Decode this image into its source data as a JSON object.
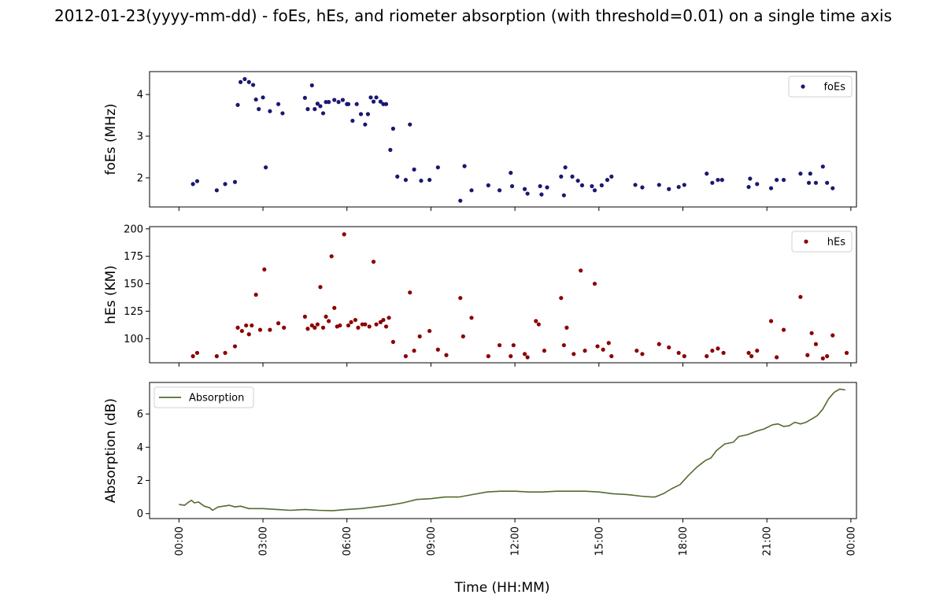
{
  "figure": {
    "title": "2012-01-23(yyyy-mm-dd) - foEs, hEs, and riometer absorption (with threshold=0.01) on a single time axis",
    "xlabel": "Time (HH:MM)"
  },
  "chart_data": [
    {
      "type": "scatter",
      "ylabel": "foEs (MHz)",
      "xlim": [
        -1.05,
        24.2
      ],
      "ylim": [
        1.3,
        4.55
      ],
      "yticks": [
        2,
        3,
        4
      ],
      "color": "#191970",
      "legend": {
        "placement": "top-right"
      },
      "series": [
        {
          "name": "foEs",
          "x": [
            0.5,
            0.65,
            1.35,
            1.65,
            2.0,
            2.1,
            2.2,
            2.35,
            2.5,
            2.65,
            2.75,
            2.85,
            3.0,
            3.1,
            3.25,
            3.55,
            3.7,
            4.5,
            4.6,
            4.75,
            4.85,
            4.95,
            5.05,
            5.15,
            5.25,
            5.35,
            5.55,
            5.7,
            5.85,
            6.0,
            6.05,
            6.2,
            6.35,
            6.5,
            6.65,
            6.75,
            6.85,
            6.95,
            7.05,
            7.2,
            7.3,
            7.4,
            7.55,
            7.65,
            7.8,
            8.1,
            8.25,
            8.4,
            8.65,
            8.95,
            9.25,
            10.05,
            10.2,
            10.45,
            11.05,
            11.45,
            11.85,
            11.9,
            12.35,
            12.45,
            12.9,
            12.95,
            13.15,
            13.65,
            13.75,
            13.8,
            14.05,
            14.25,
            14.4,
            14.75,
            14.85,
            15.1,
            15.3,
            15.45,
            16.3,
            16.55,
            17.15,
            17.5,
            17.85,
            18.05,
            18.85,
            19.05,
            19.25,
            19.4,
            20.35,
            20.4,
            20.65,
            21.15,
            21.35,
            21.6,
            22.2,
            22.5,
            22.55,
            22.75,
            23.0,
            23.15,
            23.35
          ],
          "y": [
            1.85,
            1.92,
            1.7,
            1.85,
            1.9,
            3.75,
            4.3,
            4.37,
            4.3,
            4.23,
            3.88,
            3.65,
            3.93,
            2.25,
            3.6,
            3.77,
            3.55,
            3.92,
            3.65,
            4.22,
            3.65,
            3.78,
            3.72,
            3.55,
            3.82,
            3.82,
            3.87,
            3.82,
            3.87,
            3.77,
            3.77,
            3.37,
            3.77,
            3.53,
            3.28,
            3.53,
            3.93,
            3.83,
            3.93,
            3.83,
            3.77,
            3.77,
            2.67,
            3.18,
            2.03,
            1.95,
            3.28,
            2.2,
            1.93,
            1.95,
            2.25,
            1.45,
            2.28,
            1.7,
            1.82,
            1.7,
            2.12,
            1.8,
            1.73,
            1.62,
            1.8,
            1.6,
            1.77,
            2.03,
            1.58,
            2.25,
            2.03,
            1.93,
            1.82,
            1.8,
            1.7,
            1.82,
            1.95,
            2.03,
            1.83,
            1.77,
            1.83,
            1.73,
            1.78,
            1.83,
            2.1,
            1.88,
            1.95,
            1.95,
            1.78,
            1.98,
            1.85,
            1.75,
            1.95,
            1.95,
            2.1,
            1.88,
            2.1,
            1.88,
            2.27,
            1.88,
            1.75
          ]
        }
      ]
    },
    {
      "type": "scatter",
      "ylabel": "hEs (KM)",
      "xlim": [
        -1.05,
        24.2
      ],
      "ylim": [
        78,
        202
      ],
      "yticks": [
        100,
        125,
        150,
        175,
        200
      ],
      "color": "#8b0000",
      "legend": {
        "placement": "top-right"
      },
      "series": [
        {
          "name": "hEs",
          "x": [
            0.5,
            0.65,
            1.35,
            1.65,
            2.0,
            2.1,
            2.25,
            2.4,
            2.5,
            2.6,
            2.75,
            2.9,
            3.05,
            3.25,
            3.55,
            3.75,
            4.5,
            4.6,
            4.75,
            4.85,
            4.95,
            5.05,
            5.15,
            5.25,
            5.35,
            5.45,
            5.55,
            5.65,
            5.75,
            5.9,
            6.05,
            6.15,
            6.3,
            6.4,
            6.55,
            6.65,
            6.8,
            6.95,
            7.05,
            7.2,
            7.3,
            7.4,
            7.5,
            7.65,
            8.1,
            8.25,
            8.4,
            8.6,
            8.95,
            9.25,
            9.55,
            10.05,
            10.15,
            10.45,
            11.05,
            11.45,
            11.85,
            11.95,
            12.35,
            12.45,
            12.75,
            12.85,
            13.05,
            13.65,
            13.75,
            13.85,
            14.1,
            14.35,
            14.5,
            14.85,
            14.95,
            15.15,
            15.35,
            15.45,
            16.35,
            16.55,
            17.15,
            17.5,
            17.85,
            18.05,
            18.85,
            19.05,
            19.25,
            19.45,
            20.35,
            20.45,
            20.65,
            21.15,
            21.35,
            21.6,
            22.2,
            22.45,
            22.6,
            22.75,
            23.0,
            23.15,
            23.35,
            23.85
          ],
          "y": [
            84,
            87,
            84,
            87,
            93,
            110,
            107,
            112,
            104,
            112,
            140,
            108,
            163,
            108,
            114,
            110,
            120,
            109,
            112,
            110,
            113,
            147,
            110,
            120,
            116,
            175,
            128,
            111,
            112,
            195,
            112,
            115,
            117,
            110,
            113,
            113,
            111,
            170,
            113,
            115,
            117,
            111,
            119,
            97,
            84,
            142,
            89,
            102,
            107,
            90,
            85,
            137,
            102,
            119,
            84,
            94,
            84,
            94,
            86,
            83,
            116,
            113,
            89,
            137,
            94,
            110,
            86,
            162,
            89,
            150,
            93,
            90,
            96,
            84,
            89,
            86,
            95,
            92,
            87,
            84,
            84,
            89,
            91,
            87,
            87,
            84,
            89,
            116,
            83,
            108,
            138,
            85,
            105,
            95,
            82,
            84,
            103,
            87
          ]
        }
      ]
    },
    {
      "type": "line",
      "ylabel": "Absorption (dB)",
      "xlim": [
        -1.05,
        24.2
      ],
      "ylim": [
        -0.3,
        7.9
      ],
      "yticks": [
        0,
        2,
        4,
        6
      ],
      "color": "#556b2f",
      "legend": {
        "placement": "top-left"
      },
      "series": [
        {
          "name": "Absorption",
          "x": [
            0.0,
            0.2,
            0.35,
            0.45,
            0.55,
            0.7,
            0.9,
            1.0,
            1.1,
            1.2,
            1.4,
            1.6,
            1.8,
            2.0,
            2.2,
            2.5,
            2.8,
            3.0,
            3.5,
            4.0,
            4.5,
            5.0,
            5.5,
            6.0,
            6.5,
            7.0,
            7.5,
            8.0,
            8.5,
            9.0,
            9.5,
            10.0,
            10.5,
            11.0,
            11.5,
            12.0,
            12.5,
            13.0,
            13.5,
            14.0,
            14.5,
            15.0,
            15.5,
            16.0,
            16.5,
            16.9,
            17.0,
            17.3,
            17.6,
            17.9,
            18.2,
            18.5,
            18.8,
            19.0,
            19.2,
            19.5,
            19.8,
            20.0,
            20.3,
            20.6,
            20.9,
            21.2,
            21.4,
            21.6,
            21.8,
            22.0,
            22.2,
            22.4,
            22.6,
            22.8,
            23.0,
            23.2,
            23.4,
            23.6,
            23.8
          ],
          "y": [
            0.55,
            0.5,
            0.7,
            0.8,
            0.65,
            0.7,
            0.45,
            0.4,
            0.35,
            0.2,
            0.4,
            0.45,
            0.5,
            0.4,
            0.45,
            0.3,
            0.3,
            0.3,
            0.25,
            0.2,
            0.25,
            0.2,
            0.18,
            0.25,
            0.3,
            0.4,
            0.5,
            0.65,
            0.85,
            0.9,
            1.0,
            1.0,
            1.15,
            1.3,
            1.35,
            1.35,
            1.3,
            1.3,
            1.35,
            1.35,
            1.35,
            1.3,
            1.2,
            1.15,
            1.05,
            1.0,
            1.0,
            1.2,
            1.5,
            1.75,
            2.3,
            2.8,
            3.2,
            3.35,
            3.8,
            4.2,
            4.3,
            4.65,
            4.75,
            4.95,
            5.1,
            5.35,
            5.4,
            5.25,
            5.3,
            5.5,
            5.4,
            5.5,
            5.7,
            5.9,
            6.3,
            6.9,
            7.3,
            7.5,
            7.45
          ]
        }
      ],
      "xticks": [
        0,
        3,
        6,
        9,
        12,
        15,
        18,
        21,
        24
      ],
      "xticklabels": [
        "00:00",
        "03:00",
        "06:00",
        "09:00",
        "12:00",
        "15:00",
        "18:00",
        "21:00",
        "00:00"
      ]
    }
  ]
}
